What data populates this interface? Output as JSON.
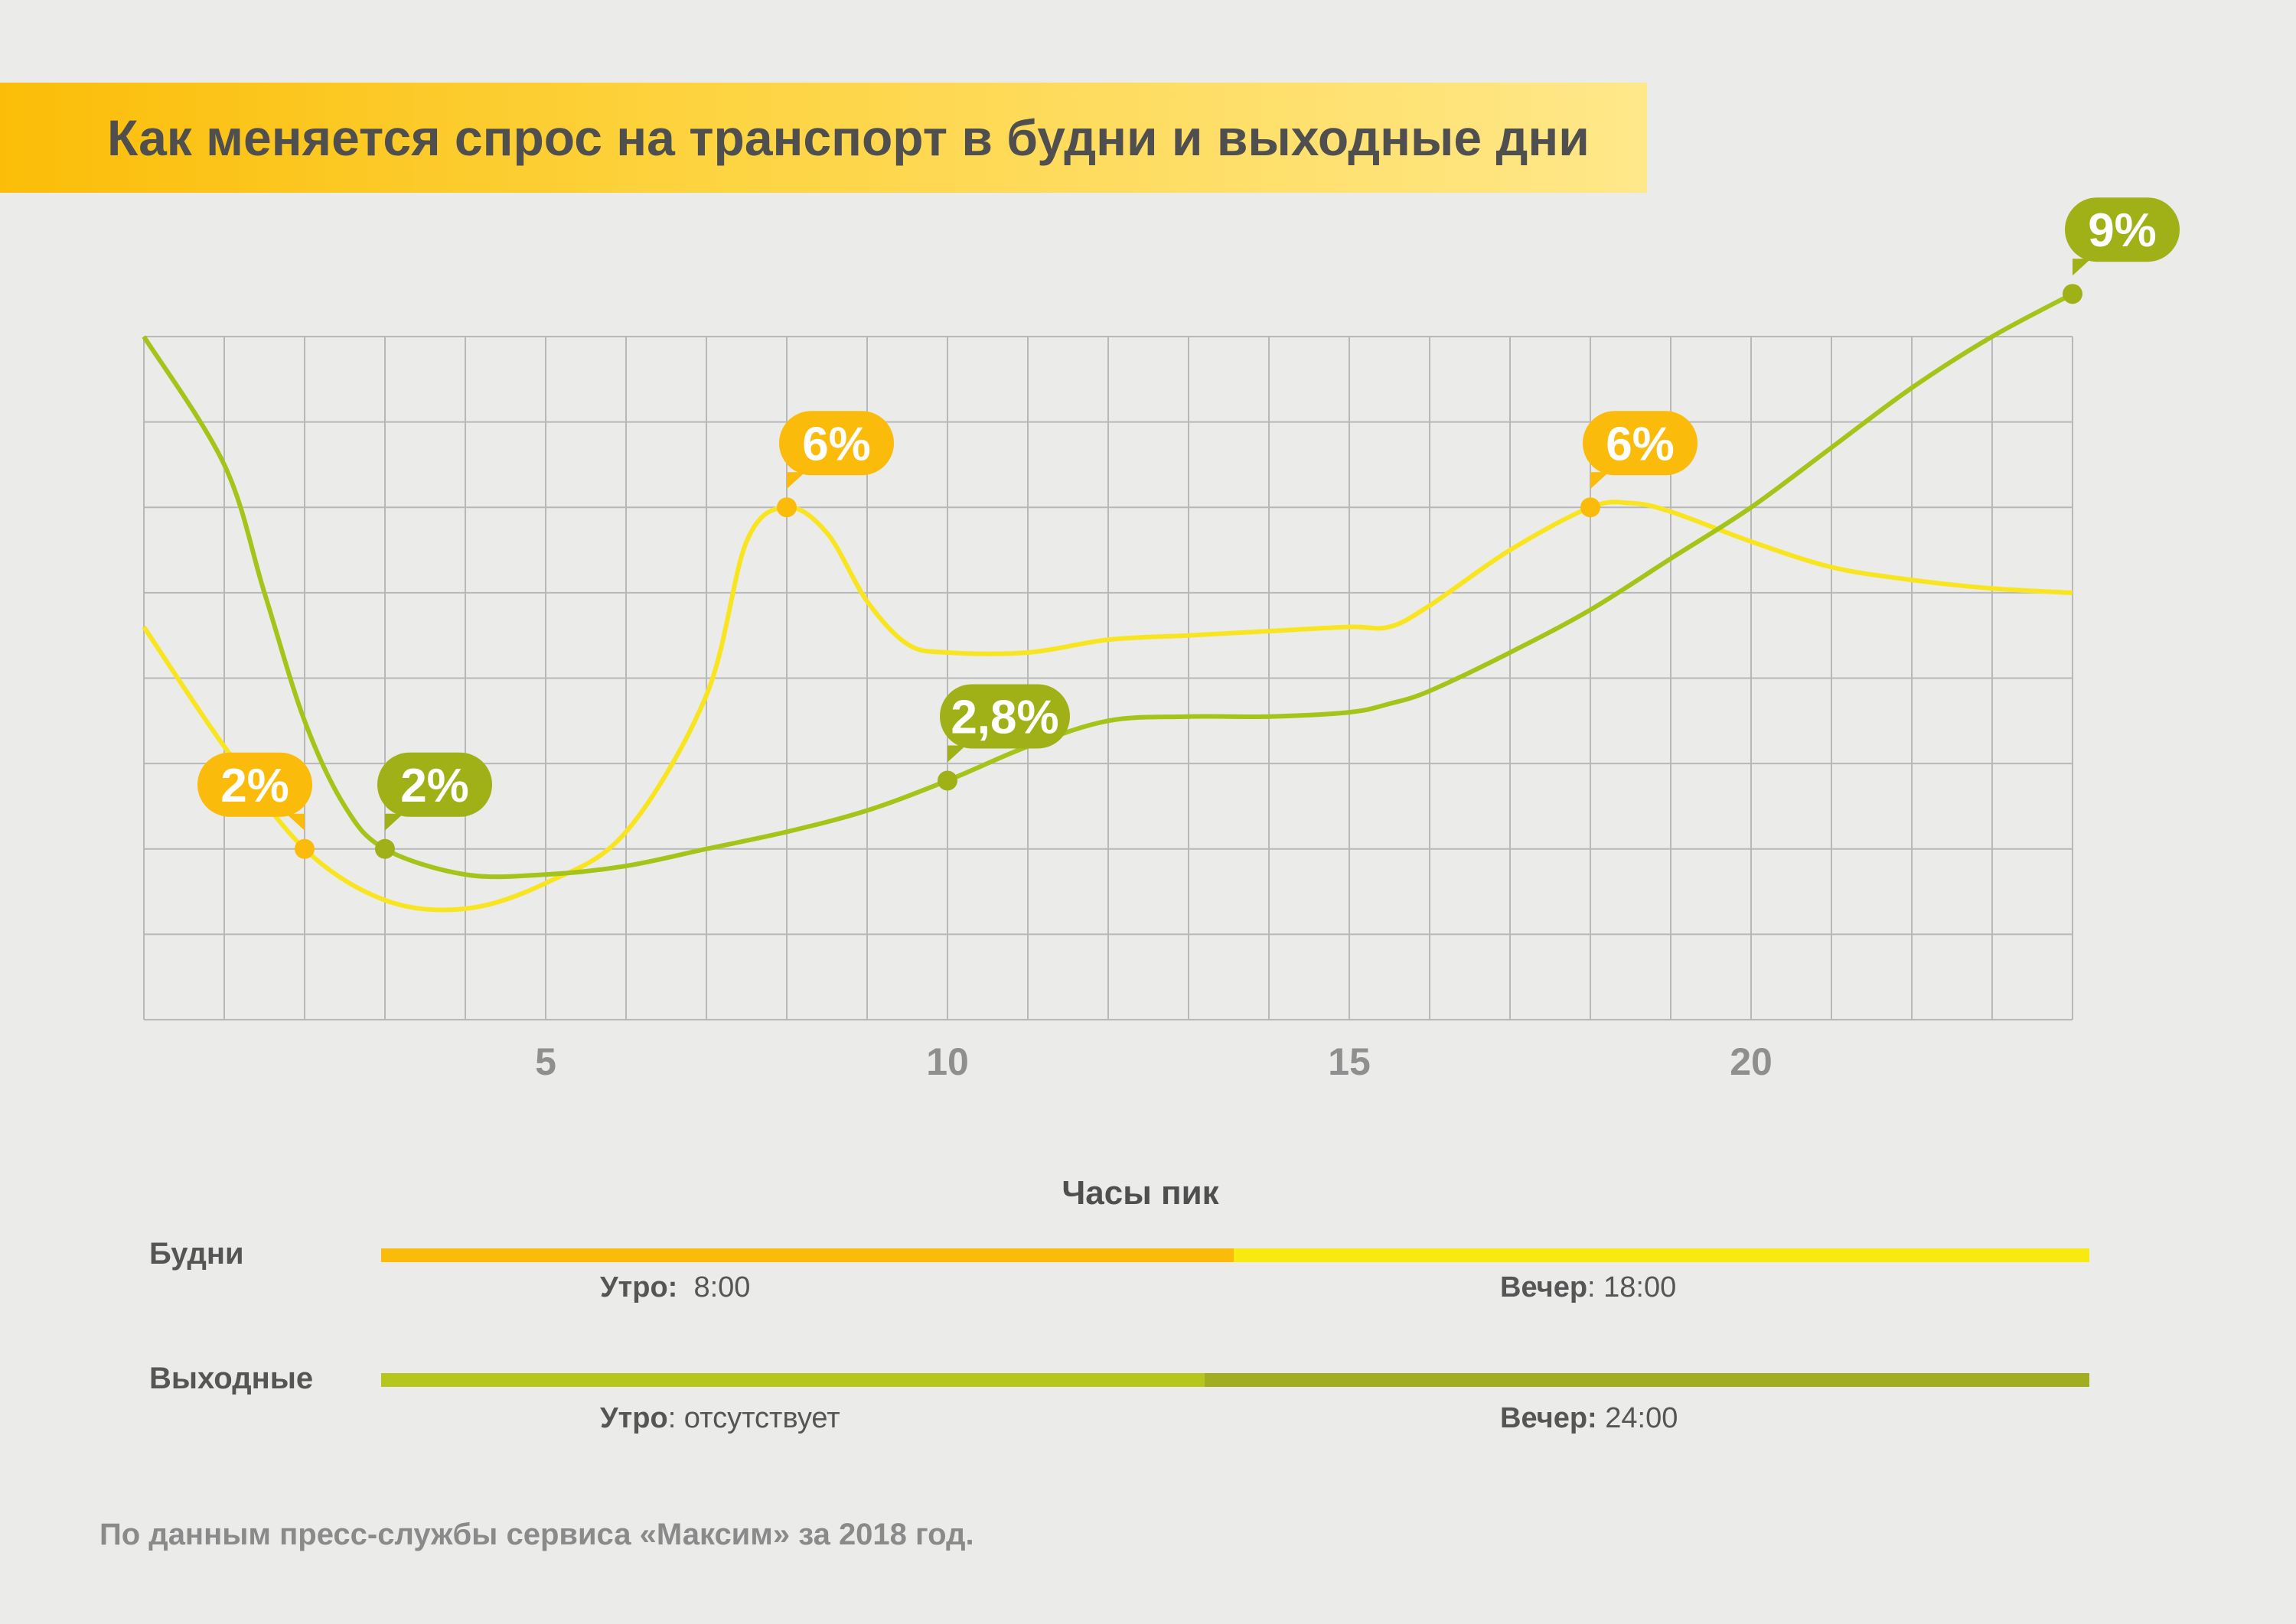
{
  "title": "Как меняется спрос на транспорт в будни и выходные дни",
  "chart_data": {
    "type": "line",
    "xlim": [
      0,
      24
    ],
    "x_ticks": [
      5,
      10,
      15,
      20
    ],
    "ylim": [
      0,
      8
    ],
    "grid": true,
    "series": [
      {
        "key": "weekdays",
        "color": "#f8e520",
        "x": [
          0,
          1,
          2,
          3,
          4,
          5,
          6,
          7,
          7.5,
          8,
          8.5,
          9,
          9.5,
          10,
          11,
          12,
          13,
          14,
          15,
          15.5,
          16,
          17,
          18,
          18.5,
          19,
          20,
          21,
          22,
          23,
          24
        ],
        "y": [
          4.6,
          3.2,
          2.0,
          1.4,
          1.3,
          1.6,
          2.2,
          3.8,
          5.6,
          6.0,
          5.7,
          4.9,
          4.4,
          4.3,
          4.3,
          4.45,
          4.5,
          4.55,
          4.6,
          4.6,
          4.85,
          5.5,
          6.0,
          6.05,
          5.95,
          5.6,
          5.3,
          5.15,
          5.05,
          5.0
        ],
        "callouts": [
          {
            "x": 2,
            "y": 2.0,
            "label": "2%",
            "color": "#fbbb0a",
            "side": "left"
          },
          {
            "x": 8,
            "y": 6.0,
            "label": "6%",
            "color": "#fbbb0a",
            "side": "right"
          },
          {
            "x": 18,
            "y": 6.0,
            "label": "6%",
            "color": "#fbbb0a",
            "side": "right"
          }
        ]
      },
      {
        "key": "weekends",
        "color": "#a5c419",
        "x": [
          0,
          1,
          1.5,
          2,
          2.5,
          3,
          4,
          5,
          6,
          7,
          8,
          9,
          10,
          11,
          12,
          13,
          14,
          15,
          15.5,
          16,
          17,
          18,
          19,
          20,
          21,
          22,
          23,
          24
        ],
        "y": [
          8.0,
          6.5,
          5.0,
          3.5,
          2.5,
          2.0,
          1.7,
          1.7,
          1.8,
          2.0,
          2.2,
          2.45,
          2.8,
          3.2,
          3.5,
          3.55,
          3.55,
          3.6,
          3.7,
          3.85,
          4.3,
          4.8,
          5.4,
          6.0,
          6.7,
          7.4,
          8.0,
          8.5
        ],
        "callouts": [
          {
            "x": 3,
            "y": 2.0,
            "label": "2%",
            "color": "#a0b017",
            "side": "right"
          },
          {
            "x": 10,
            "y": 2.8,
            "label": "2,8%",
            "color": "#a0b017",
            "side": "right"
          },
          {
            "x": 24,
            "y": 8.5,
            "label": "9%",
            "color": "#a0b017",
            "side": "right"
          }
        ]
      }
    ]
  },
  "peaks": {
    "title": "Часы пик",
    "weekdays": {
      "label": "Будни",
      "colors": [
        "#fbbb0a",
        "#f8ea10"
      ],
      "morning_label": "Утро:",
      "morning_value": "8:00",
      "evening_label": "Вечер",
      "evening_value": ": 18:00"
    },
    "weekends": {
      "label": "Выходные",
      "colors": [
        "#b5c61c",
        "#a0ae1f"
      ],
      "morning_label": "Утро",
      "morning_value": ": отсутствует",
      "evening_label": "Вечер:",
      "evening_value": "24:00"
    }
  },
  "source": "По данным пресс-службы сервиса «Максим» за 2018 год."
}
